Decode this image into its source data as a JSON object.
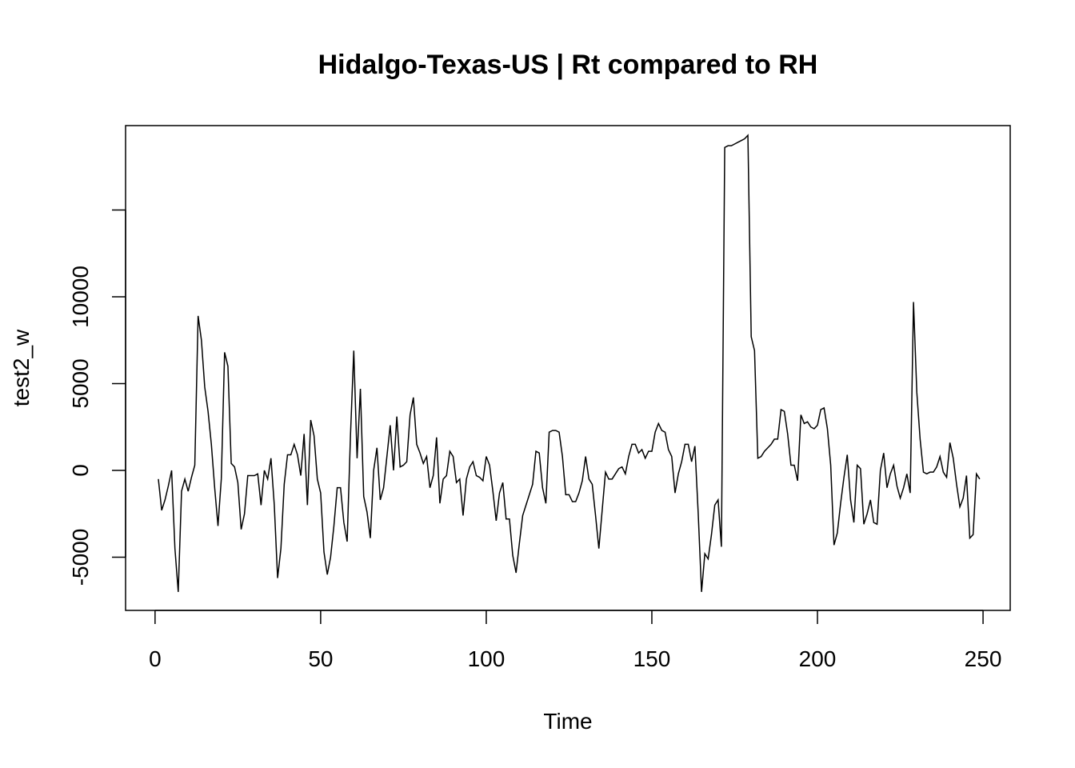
{
  "chart_data": {
    "type": "line",
    "title": "Hidalgo-Texas-US | Rt compared to RH",
    "xlabel": "Time",
    "ylabel": "test2_w",
    "x": [
      1,
      2,
      3,
      4,
      5,
      6,
      7,
      8,
      9,
      10,
      11,
      12,
      13,
      14,
      15,
      16,
      17,
      18,
      19,
      20,
      21,
      22,
      23,
      24,
      25,
      26,
      27,
      28,
      29,
      30,
      31,
      32,
      33,
      34,
      35,
      36,
      37,
      38,
      39,
      40,
      41,
      42,
      43,
      44,
      45,
      46,
      47,
      48,
      49,
      50,
      51,
      52,
      53,
      54,
      55,
      56,
      57,
      58,
      59,
      60,
      61,
      62,
      63,
      64,
      65,
      66,
      67,
      68,
      69,
      70,
      71,
      72,
      73,
      74,
      75,
      76,
      77,
      78,
      79,
      80,
      81,
      82,
      83,
      84,
      85,
      86,
      87,
      88,
      89,
      90,
      91,
      92,
      93,
      94,
      95,
      96,
      97,
      98,
      99,
      100,
      101,
      102,
      103,
      104,
      105,
      106,
      107,
      108,
      109,
      110,
      111,
      112,
      113,
      114,
      115,
      116,
      117,
      118,
      119,
      120,
      121,
      122,
      123,
      124,
      125,
      126,
      127,
      128,
      129,
      130,
      131,
      132,
      133,
      134,
      135,
      136,
      137,
      138,
      139,
      140,
      141,
      142,
      143,
      144,
      145,
      146,
      147,
      148,
      149,
      150,
      151,
      152,
      153,
      154,
      155,
      156,
      157,
      158,
      159,
      160,
      161,
      162,
      163,
      164,
      165,
      166,
      167,
      168,
      169,
      170,
      171,
      172,
      173,
      174,
      175,
      176,
      177,
      178,
      179,
      180,
      181,
      182,
      183,
      184,
      185,
      186,
      187,
      188,
      189,
      190,
      191,
      192,
      193,
      194,
      195,
      196,
      197,
      198,
      199,
      200,
      201,
      202,
      203,
      204,
      205,
      206,
      207,
      208,
      209,
      210,
      211,
      212,
      213,
      214,
      215,
      216,
      217,
      218,
      219,
      220,
      221,
      222,
      223,
      224,
      225,
      226,
      227,
      228,
      229,
      230,
      231,
      232,
      233,
      234,
      235,
      236,
      237,
      238,
      239,
      240,
      241,
      242,
      243,
      244,
      245,
      246,
      247,
      248,
      249
    ],
    "series": [
      {
        "color": "#000000",
        "values": [
          -500,
          -2300,
          -1700,
          -900,
          0,
          -4500,
          -7000,
          -1200,
          -500,
          -1200,
          -400,
          300,
          8900,
          7500,
          4800,
          3400,
          1500,
          -1000,
          -3200,
          -500,
          6800,
          6000,
          400,
          200,
          -700,
          -3400,
          -2500,
          -300,
          -300,
          -300,
          -200,
          -2000,
          0,
          -500,
          700,
          -2000,
          -6200,
          -4500,
          -800,
          900,
          900,
          1500,
          900,
          -300,
          2100,
          -2000,
          2900,
          2000,
          -500,
          -1300,
          -4700,
          -6000,
          -5000,
          -3200,
          -1000,
          -1000,
          -3000,
          -4100,
          2000,
          6900,
          700,
          4700,
          -1500,
          -2400,
          -3900,
          0,
          1300,
          -1700,
          -1000,
          800,
          2600,
          0,
          3100,
          200,
          300,
          500,
          3200,
          4200,
          1500,
          1000,
          400,
          800,
          -1000,
          -300,
          1900,
          -1900,
          -500,
          -300,
          1100,
          800,
          -700,
          -500,
          -2600,
          -500,
          200,
          500,
          -300,
          -400,
          -600,
          800,
          300,
          -1200,
          -2900,
          -1300,
          -700,
          -2800,
          -2800,
          -4900,
          -5900,
          -4200,
          -2600,
          -2000,
          -1400,
          -800,
          1100,
          1000,
          -1000,
          -1900,
          2200,
          2300,
          2300,
          2200,
          800,
          -1400,
          -1400,
          -1800,
          -1800,
          -1300,
          -600,
          800,
          -500,
          -800,
          -2600,
          -4500,
          -2300,
          -100,
          -500,
          -500,
          -200,
          100,
          200,
          -200,
          800,
          1500,
          1500,
          1000,
          1200,
          700,
          1100,
          1100,
          2200,
          2700,
          2300,
          2200,
          1200,
          800,
          -1300,
          -200,
          500,
          1500,
          1500,
          500,
          1400,
          -2500,
          -7000,
          -4800,
          -5100,
          -3700,
          -2000,
          -1700,
          -4400,
          18600,
          18700,
          18700,
          18800,
          18900,
          19000,
          19100,
          19300,
          7700,
          6900,
          700,
          800,
          1100,
          1300,
          1500,
          1800,
          1800,
          3500,
          3400,
          2100,
          300,
          300,
          -600,
          3200,
          2700,
          2800,
          2500,
          2400,
          2600,
          3500,
          3600,
          2400,
          300,
          -4300,
          -3600,
          -1900,
          -400,
          900,
          -1700,
          -3000,
          300,
          100,
          -3100,
          -2500,
          -1700,
          -3000,
          -3100,
          0,
          1000,
          -1000,
          -200,
          300,
          -900,
          -1600,
          -1000,
          -200,
          -1300,
          9700,
          4500,
          1800,
          -100,
          -200,
          -100,
          -100,
          200,
          800,
          -100,
          -400,
          1600,
          700,
          -800,
          -2100,
          -1600,
          -300,
          -3900,
          -3700,
          -200,
          -500
        ]
      }
    ],
    "xlim": [
      -8.9,
      258.2
    ],
    "xticks": [
      0,
      50,
      100,
      150,
      200,
      250
    ],
    "ylim": [
      -8065,
      19860
    ],
    "yticks": [
      -5000,
      0,
      5000,
      10000,
      {
        "value": 15000,
        "label": null
      }
    ]
  }
}
